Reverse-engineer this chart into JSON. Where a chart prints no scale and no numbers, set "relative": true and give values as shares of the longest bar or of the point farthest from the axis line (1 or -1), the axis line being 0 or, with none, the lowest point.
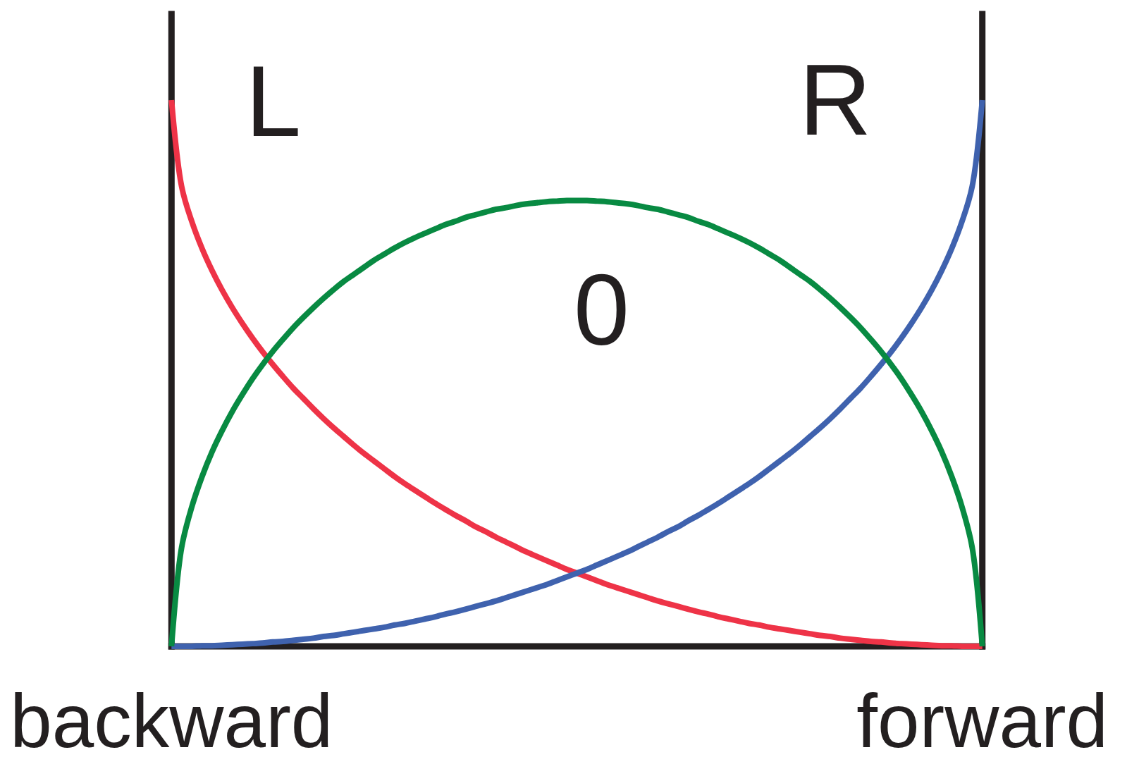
{
  "chart_data": {
    "type": "line",
    "relative": true,
    "categories": [
      "backward",
      null,
      null,
      null,
      null,
      null,
      null,
      null,
      null,
      null,
      null,
      null,
      null,
      null,
      null,
      null,
      null,
      null,
      null,
      null,
      null,
      null,
      null,
      null,
      null,
      null,
      null,
      null,
      null,
      null,
      null,
      null,
      null,
      null,
      null,
      null,
      null,
      null,
      null,
      null,
      null,
      null,
      null,
      null,
      null,
      null,
      null,
      null,
      null,
      null,
      null,
      null,
      null,
      null,
      null,
      null,
      null,
      null,
      null,
      null,
      null,
      null,
      null,
      null,
      null,
      null,
      null,
      null,
      null,
      null,
      null,
      null,
      null,
      null,
      null,
      null,
      null,
      null,
      null,
      null,
      "forward"
    ],
    "series": [
      {
        "name": "L",
        "color": "#ee3347",
        "values": [
          1,
          0.842,
          0.778,
          0.729,
          0.688,
          0.652,
          0.62,
          0.591,
          0.564,
          0.539,
          0.516,
          0.494,
          0.473,
          0.454,
          0.435,
          0.417,
          0.4,
          0.384,
          0.368,
          0.353,
          0.339,
          0.325,
          0.311,
          0.298,
          0.286,
          0.274,
          0.262,
          0.251,
          0.24,
          0.23,
          0.219,
          0.21,
          0.2,
          0.191,
          0.182,
          0.173,
          0.165,
          0.157,
          0.149,
          0.141,
          0.134,
          0.127,
          0.12,
          0.113,
          0.107,
          0.101,
          0.095,
          0.089,
          0.083,
          0.078,
          0.073,
          0.068,
          0.063,
          0.059,
          0.054,
          0.05,
          0.046,
          0.042,
          0.039,
          0.035,
          0.032,
          0.029,
          0.026,
          0.023,
          0.02,
          0.018,
          0.015,
          0.013,
          0.011,
          0.009,
          0.008,
          0.006,
          0.005,
          0.004,
          0.003,
          0.002,
          0.001,
          0.001,
          0,
          0,
          0
        ]
      },
      {
        "name": "R",
        "color": "#3f62ae",
        "values": [
          0,
          0,
          0,
          0.001,
          0.001,
          0.002,
          0.003,
          0.004,
          0.005,
          0.006,
          0.008,
          0.009,
          0.011,
          0.013,
          0.015,
          0.018,
          0.02,
          0.023,
          0.026,
          0.029,
          0.032,
          0.035,
          0.039,
          0.042,
          0.046,
          0.05,
          0.054,
          0.059,
          0.063,
          0.068,
          0.073,
          0.078,
          0.083,
          0.089,
          0.095,
          0.101,
          0.107,
          0.113,
          0.12,
          0.127,
          0.134,
          0.141,
          0.149,
          0.157,
          0.165,
          0.173,
          0.182,
          0.191,
          0.2,
          0.21,
          0.219,
          0.23,
          0.24,
          0.251,
          0.262,
          0.274,
          0.286,
          0.298,
          0.311,
          0.325,
          0.339,
          0.353,
          0.368,
          0.384,
          0.4,
          0.417,
          0.435,
          0.454,
          0.473,
          0.494,
          0.516,
          0.539,
          0.564,
          0.591,
          0.62,
          0.652,
          0.688,
          0.729,
          0.778,
          0.842,
          1
        ]
      },
      {
        "name": "0",
        "color": "#088a42",
        "values": [
          0,
          0.181,
          0.255,
          0.31,
          0.356,
          0.395,
          0.43,
          0.461,
          0.49,
          0.516,
          0.54,
          0.562,
          0.583,
          0.602,
          0.62,
          0.637,
          0.653,
          0.668,
          0.681,
          0.694,
          0.707,
          0.718,
          0.729,
          0.739,
          0.748,
          0.756,
          0.764,
          0.772,
          0.778,
          0.785,
          0.79,
          0.795,
          0.8,
          0.803,
          0.807,
          0.81,
          0.812,
          0.814,
          0.815,
          0.816,
          0.816,
          0.816,
          0.815,
          0.814,
          0.812,
          0.81,
          0.807,
          0.803,
          0.8,
          0.795,
          0.79,
          0.785,
          0.778,
          0.772,
          0.764,
          0.756,
          0.748,
          0.739,
          0.729,
          0.718,
          0.707,
          0.694,
          0.681,
          0.668,
          0.653,
          0.637,
          0.62,
          0.602,
          0.583,
          0.562,
          0.54,
          0.516,
          0.49,
          0.461,
          0.43,
          0.395,
          0.356,
          0.31,
          0.255,
          0.181,
          0
        ]
      }
    ]
  }
}
